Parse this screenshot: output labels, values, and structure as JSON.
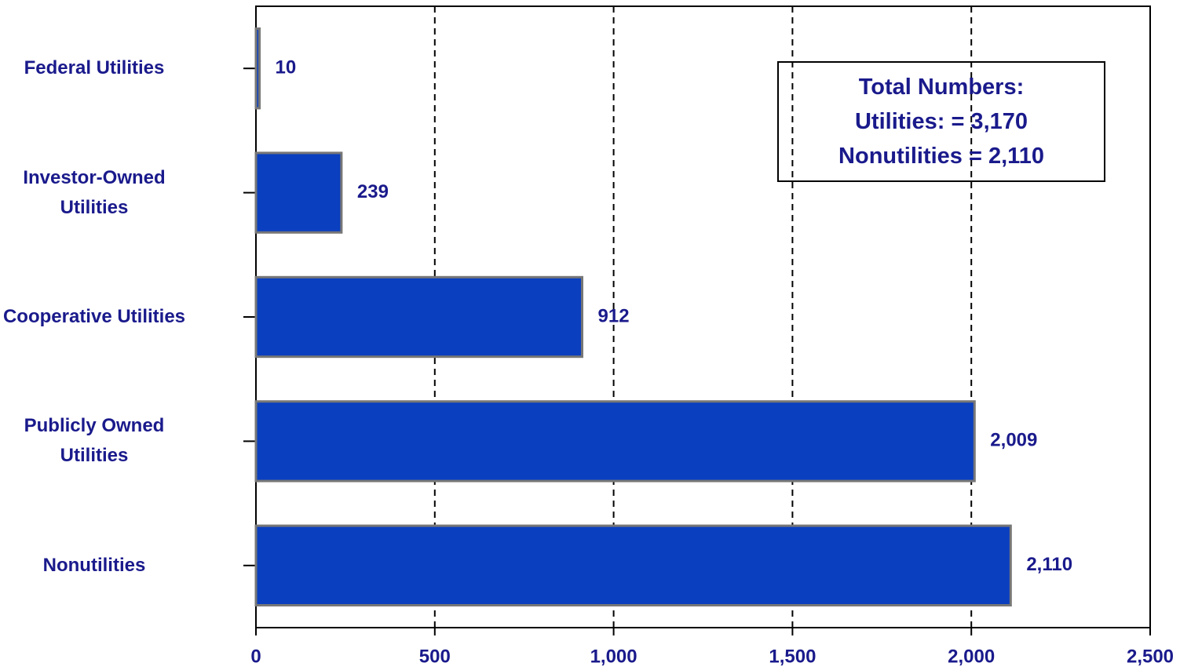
{
  "chart_data": {
    "type": "bar",
    "orientation": "horizontal",
    "categories": [
      "Federal Utilities",
      "Investor-Owned Utilities",
      "Cooperative Utilities",
      "Publicly Owned Utilities",
      "Nonutilities"
    ],
    "values": [
      10,
      239,
      912,
      2009,
      2110
    ],
    "value_labels": [
      "10",
      "239",
      "912",
      "2,009",
      "2,110"
    ],
    "color": "#0a3fbf",
    "xlim": [
      0,
      2500
    ],
    "xticks": [
      0,
      500,
      {
        "value": 1000,
        "label": "1,000"
      },
      {
        "value": 1500,
        "label": "1,500"
      },
      {
        "value": 2000,
        "label": "2,000"
      },
      {
        "value": 2500,
        "label": "2,500"
      }
    ],
    "grid": true,
    "annotation": [
      "Total Numbers:",
      "Utilities: = 3,170",
      "Nonutilities = 2,110"
    ]
  }
}
